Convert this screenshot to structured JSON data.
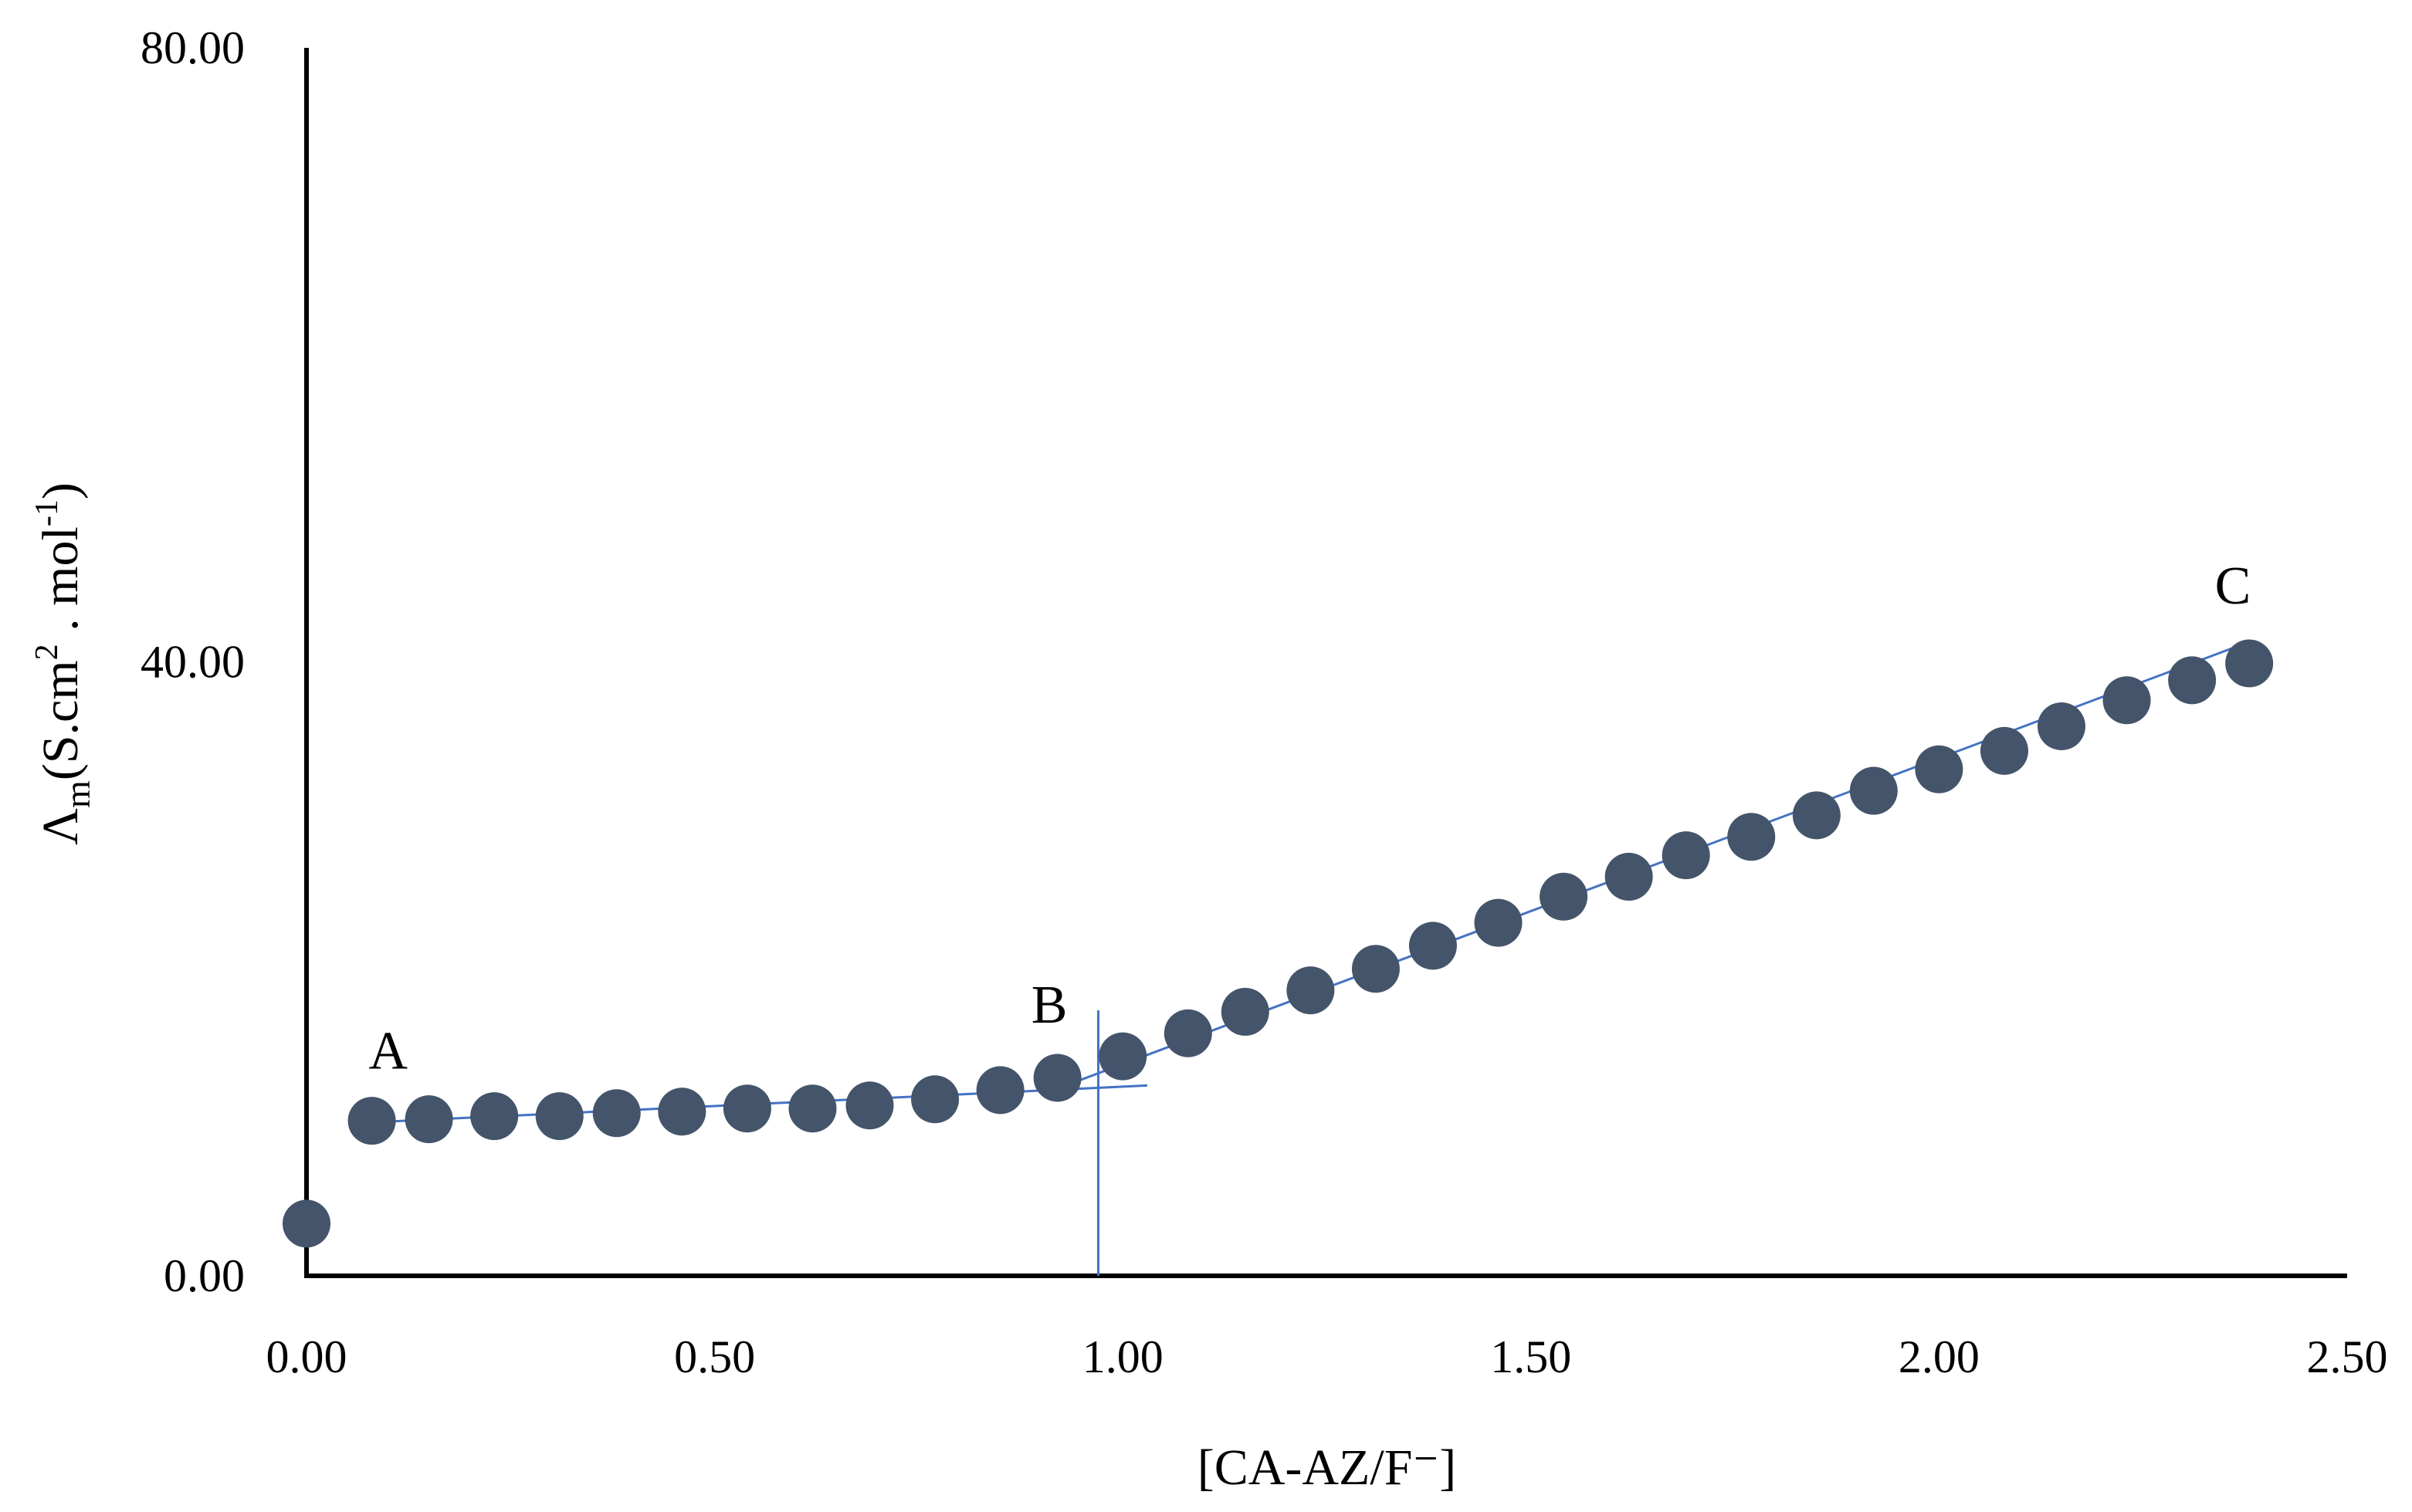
{
  "chart_data": {
    "type": "scatter",
    "title": "",
    "xlabel": "[CA-AZ/F⁻]",
    "ylabel": {
      "symbol": "Λ",
      "subscript": "m",
      "units_main": "(S.cm",
      "units_sup1": "2",
      "units_mid": " . mol",
      "units_sup2": "-1",
      "units_end": ")"
    },
    "xlim": [
      0.0,
      2.5
    ],
    "ylim": [
      0.0,
      80.0
    ],
    "x_ticks": [
      "0.00",
      "0.50",
      "1.00",
      "1.50",
      "2.00",
      "2.50"
    ],
    "y_ticks": [
      "0.00",
      "40.00",
      "80.00"
    ],
    "x_tick_values": [
      0.0,
      0.5,
      1.0,
      1.5,
      2.0,
      2.5
    ],
    "y_tick_values": [
      0.0,
      40.0,
      80.0
    ],
    "grid": false,
    "marker_color": "#44546a",
    "trend_color": "#4472c4",
    "series": [
      {
        "x": [
          0.0,
          0.08,
          0.15,
          0.23,
          0.31,
          0.38,
          0.46,
          0.54,
          0.62,
          0.69,
          0.77,
          0.85,
          0.92,
          1.0,
          1.08,
          1.15,
          1.23,
          1.31,
          1.38,
          1.46,
          1.54,
          1.62,
          1.69,
          1.77,
          1.85,
          1.92,
          2.0,
          2.08,
          2.15,
          2.23,
          2.31,
          2.38
        ],
        "y": [
          3.4,
          10.1,
          10.2,
          10.4,
          10.4,
          10.6,
          10.7,
          10.9,
          10.9,
          11.1,
          11.5,
          12.1,
          12.9,
          14.3,
          15.8,
          17.2,
          18.6,
          20.0,
          21.5,
          23.0,
          24.7,
          26.0,
          27.4,
          28.6,
          30.0,
          31.6,
          33.0,
          34.2,
          35.8,
          37.5,
          38.8,
          39.9
        ]
      }
    ],
    "trend_lines": [
      {
        "x": [
          0.08,
          1.03
        ],
        "y": [
          10.0,
          12.4
        ]
      },
      {
        "x": [
          0.9,
          2.38
        ],
        "y": [
          11.8,
          41.3
        ]
      }
    ],
    "marker_line": {
      "x": 0.97,
      "y": [
        0.0,
        17.3
      ]
    },
    "annotations": [
      {
        "text": "A",
        "x": 0.1,
        "y": 13.5
      },
      {
        "text": "B",
        "x": 0.91,
        "y": 16.5
      },
      {
        "text": "C",
        "x": 2.36,
        "y": 43.8
      }
    ]
  }
}
